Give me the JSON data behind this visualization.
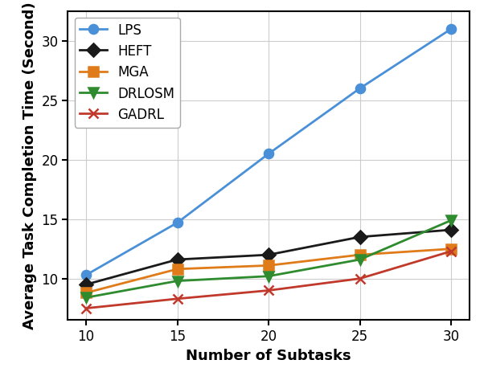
{
  "x": [
    10,
    15,
    20,
    25,
    30
  ],
  "series": {
    "LPS": [
      10.3,
      14.7,
      20.5,
      26.0,
      31.0
    ],
    "HEFT": [
      9.5,
      11.6,
      12.0,
      13.5,
      14.1
    ],
    "MGA": [
      8.8,
      10.8,
      11.1,
      12.0,
      12.5
    ],
    "DRLOSM": [
      8.4,
      9.8,
      10.2,
      11.6,
      14.9
    ],
    "GADRL": [
      7.5,
      8.3,
      9.0,
      10.0,
      12.3
    ]
  },
  "colors": {
    "LPS": "#4a90d9",
    "HEFT": "#1a1a1a",
    "MGA": "#e07b1a",
    "DRLOSM": "#2e8b2e",
    "GADRL": "#c0392b"
  },
  "markers": {
    "LPS": "o",
    "HEFT": "D",
    "MGA": "s",
    "DRLOSM": "v",
    "GADRL": "x"
  },
  "markerfilled": {
    "LPS": true,
    "HEFT": true,
    "MGA": true,
    "DRLOSM": true,
    "GADRL": false
  },
  "xlabel": "Number of Subtasks",
  "ylabel": "Average Task Completion Time (Second)",
  "ylim": [
    6.5,
    32.5
  ],
  "yticks": [
    10,
    15,
    20,
    25,
    30
  ],
  "xlim": [
    9,
    31
  ],
  "xticks": [
    10,
    15,
    20,
    25,
    30
  ],
  "linewidth": 2.0,
  "markersize": 8,
  "legend_loc": "upper left",
  "grid": true,
  "background_color": "#ffffff",
  "spine_color": "#000000",
  "label_fontsize": 13,
  "tick_fontsize": 12,
  "legend_fontsize": 12
}
